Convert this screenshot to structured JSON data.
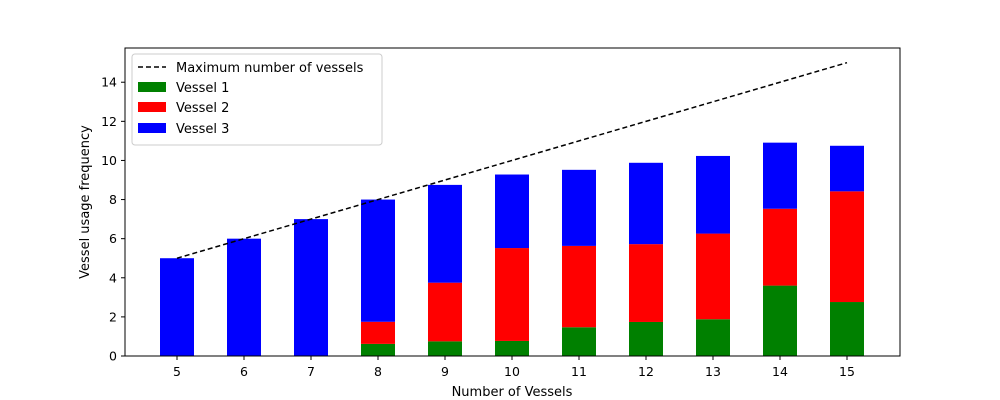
{
  "chart_data": {
    "type": "bar",
    "stacked": true,
    "title": "",
    "xlabel": "Number of Vessels",
    "ylabel": "Vessel usage frequency",
    "categories": [
      5,
      6,
      7,
      8,
      9,
      10,
      11,
      12,
      13,
      14,
      15
    ],
    "ylim": [
      0,
      15.75
    ],
    "yticks": [
      0,
      2,
      4,
      6,
      8,
      10,
      12,
      14
    ],
    "series": [
      {
        "name": "Vessel 1",
        "color": "#008000",
        "values": [
          0,
          0,
          0,
          0.62,
          0.75,
          0.77,
          1.47,
          1.74,
          1.88,
          3.6,
          2.76
        ]
      },
      {
        "name": "Vessel 2",
        "color": "#ff0000",
        "values": [
          0,
          0,
          0,
          1.13,
          3.0,
          4.75,
          4.16,
          3.98,
          4.38,
          3.93,
          5.66
        ]
      },
      {
        "name": "Vessel 3",
        "color": "#0000ff",
        "values": [
          5.0,
          6.0,
          7.0,
          6.25,
          5.0,
          3.76,
          3.89,
          4.16,
          3.97,
          3.38,
          2.33
        ]
      }
    ],
    "line": {
      "name": "Maximum number of vessels",
      "color": "#000000",
      "style": "dashed",
      "x": [
        5,
        15
      ],
      "y": [
        5,
        15
      ]
    },
    "legend": {
      "placement": "top-left",
      "entries": [
        "Maximum number of vessels",
        "Vessel 1",
        "Vessel 2",
        "Vessel 3"
      ]
    },
    "grid": false
  }
}
